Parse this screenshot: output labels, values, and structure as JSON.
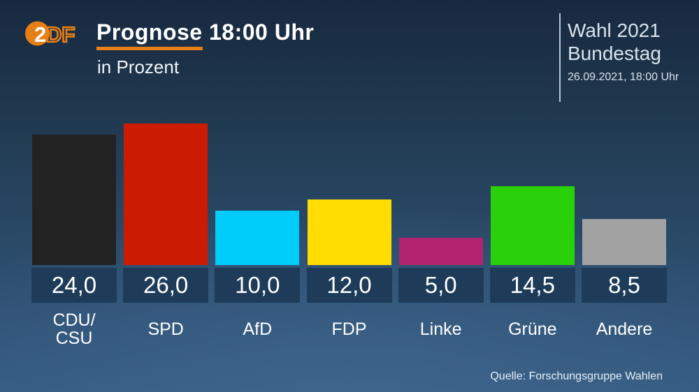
{
  "header": {
    "logo_text": "ZDF",
    "title": "Prognose 18:00 Uhr",
    "subtitle": "in Prozent",
    "right": {
      "line1": "Wahl 2021",
      "line2": "Bundestag",
      "datetime": "26.09.2021, 18:00 Uhr"
    }
  },
  "chart_data": {
    "type": "bar",
    "title": "Prognose 18:00 Uhr",
    "unit": "Prozent",
    "categories": [
      "CDU/CSU",
      "SPD",
      "AfD",
      "FDP",
      "Linke",
      "Grüne",
      "Andere"
    ],
    "display_labels": [
      "CDU/\nCSU",
      "SPD",
      "AfD",
      "FDP",
      "Linke",
      "Grüne",
      "Andere"
    ],
    "values": [
      24.0,
      26.0,
      10.0,
      12.0,
      5.0,
      14.5,
      8.5
    ],
    "value_labels": [
      "24,0",
      "26,0",
      "10,0",
      "12,0",
      "5,0",
      "14,5",
      "8,5"
    ],
    "bar_colors": [
      "#222222",
      "#cc1b03",
      "#00ccfa",
      "#ffdd00",
      "#b4246e",
      "#2ad10a",
      "#a2a2a2"
    ],
    "ylim": [
      0,
      26
    ],
    "grid": false,
    "legend": false
  },
  "footer": {
    "source": "Quelle: Forschungsgruppe Wahlen"
  },
  "colors": {
    "accent_orange": "#e87f16",
    "value_box_bg": "#1e3c59",
    "background_top": "#172940",
    "background_bottom": "#345a80"
  }
}
